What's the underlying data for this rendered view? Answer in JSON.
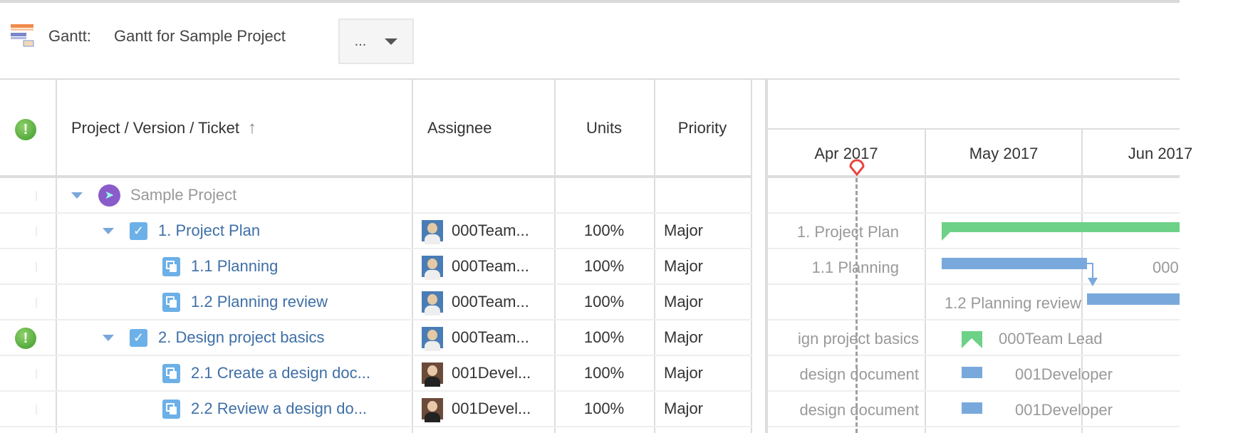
{
  "header": {
    "label": "Gantt:",
    "title": "Gantt for Sample Project",
    "more_button": "...",
    "icon": "gantt-icon"
  },
  "columns": {
    "project": "Project / Version / Ticket",
    "assignee": "Assignee",
    "units": "Units",
    "priority": "Priority",
    "sort": "sort-ascending-icon",
    "status": "warning-icon"
  },
  "timeline": {
    "months": [
      "Apr 2017",
      "May 2017",
      "Jun 2017"
    ],
    "today_marker": "today-marker-icon"
  },
  "rows": [
    {
      "name": "Sample Project",
      "type": "project",
      "assignee": "",
      "units": "",
      "priority": "",
      "warning": false,
      "gantt_label": ""
    },
    {
      "name": "1. Project Plan",
      "type": "version",
      "assignee": "000Team...",
      "units": "100%",
      "priority": "Major",
      "warning": false,
      "gantt_label": "1. Project Plan"
    },
    {
      "name": "1.1 Planning",
      "type": "ticket",
      "assignee": "000Team...",
      "units": "100%",
      "priority": "Major",
      "warning": false,
      "gantt_label": "1.1 Planning",
      "gantt_right_label": "000"
    },
    {
      "name": "1.2 Planning review",
      "type": "ticket",
      "assignee": "000Team...",
      "units": "100%",
      "priority": "Major",
      "warning": false,
      "gantt_label": "1.2 Planning review"
    },
    {
      "name": "2. Design project basics",
      "type": "version",
      "assignee": "000Team...",
      "units": "100%",
      "priority": "Major",
      "warning": true,
      "gantt_label": "ign project basics",
      "gantt_right_label": "000Team Lead"
    },
    {
      "name": "2.1 Create a design doc...",
      "type": "ticket",
      "assignee": "001Devel...",
      "units": "100%",
      "priority": "Major",
      "warning": false,
      "gantt_label": "design document",
      "gantt_right_label": "001Developer"
    },
    {
      "name": "2.2 Review a design do...",
      "type": "ticket",
      "assignee": "001Devel...",
      "units": "100%",
      "priority": "Major",
      "warning": false,
      "gantt_label": "design document",
      "gantt_right_label": "001Developer"
    }
  ],
  "colors": {
    "version_bar": "#6dd187",
    "ticket_bar": "#79a9dc",
    "today_line": "#999999",
    "today_marker": "#e8453c",
    "link": "#3f6fa6"
  }
}
